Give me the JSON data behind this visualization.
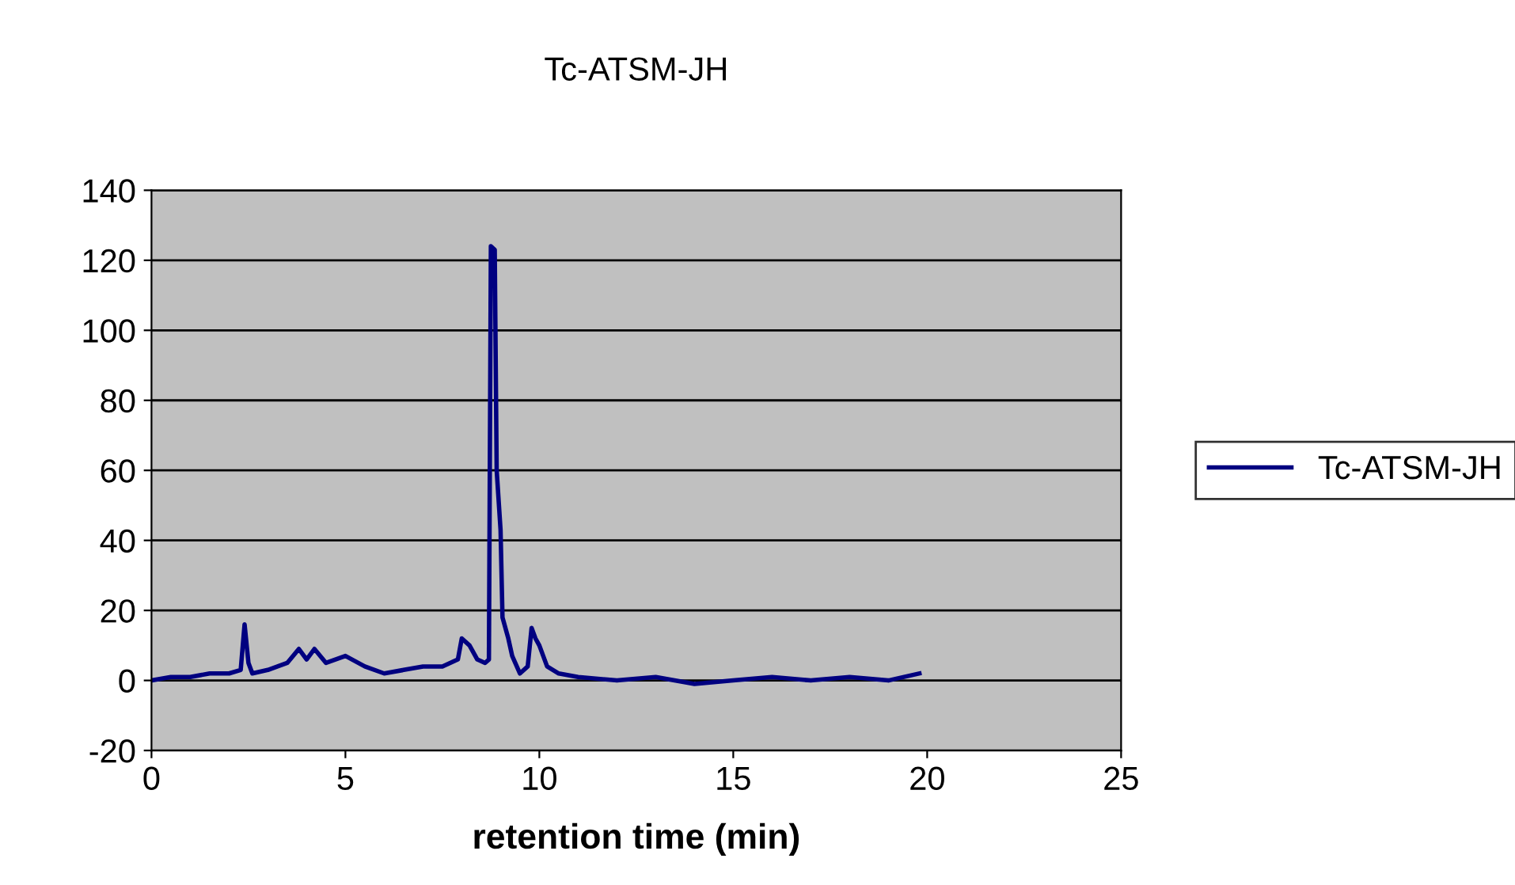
{
  "chart_data": {
    "type": "line",
    "title": "Tc-ATSM-JH",
    "xlabel": "retention time (min)",
    "xlim": [
      0,
      25
    ],
    "xticks": [
      0,
      5,
      10,
      15,
      20,
      25
    ],
    "ylim": [
      -20,
      140
    ],
    "yticks": [
      -20,
      0,
      20,
      40,
      60,
      80,
      100,
      120,
      140
    ],
    "grid": "y",
    "legend": "right",
    "marker": "none",
    "line_style": "solid",
    "series": [
      {
        "name": "Tc-ATSM-JH",
        "color": "#000080",
        "x": [
          0,
          0.5,
          1,
          1.5,
          2,
          2.3,
          2.4,
          2.5,
          2.6,
          3,
          3.5,
          3.8,
          4,
          4.2,
          4.5,
          5,
          5.5,
          6,
          6.5,
          7,
          7.5,
          7.9,
          8.0,
          8.2,
          8.4,
          8.6,
          8.7,
          8.75,
          8.85,
          8.9,
          9.0,
          9.05,
          9.2,
          9.3,
          9.5,
          9.7,
          9.8,
          9.9,
          10,
          10.2,
          10.5,
          11,
          12,
          13,
          14,
          15,
          16,
          17,
          18,
          19,
          19.8
        ],
        "values": [
          0,
          1,
          1,
          2,
          2,
          3,
          16,
          5,
          2,
          3,
          5,
          9,
          6,
          9,
          5,
          7,
          4,
          2,
          3,
          4,
          4,
          6,
          12,
          10,
          6,
          5,
          6,
          124,
          123,
          60,
          43,
          18,
          12,
          7,
          2,
          4,
          15,
          12,
          10,
          4,
          2,
          1,
          0,
          1,
          -1,
          0,
          1,
          0,
          1,
          0,
          2
        ]
      }
    ]
  }
}
